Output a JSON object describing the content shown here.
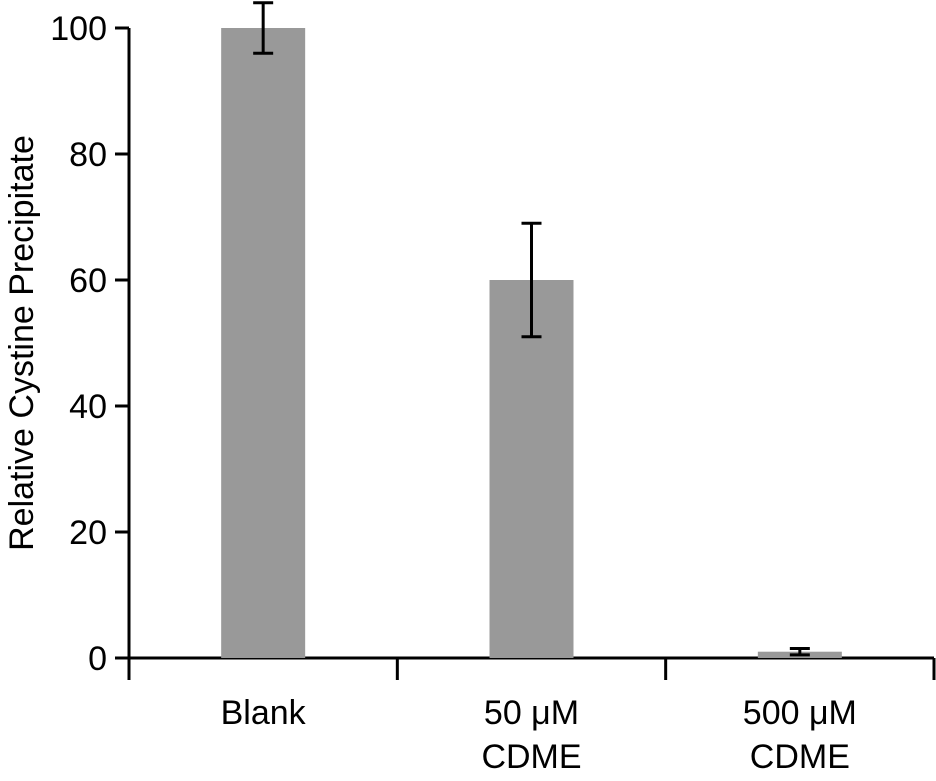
{
  "chart_data": {
    "type": "bar",
    "title": "",
    "xlabel": "",
    "ylabel": "Relative Cystine Precipitate",
    "ylim": [
      0,
      100
    ],
    "yticks": [
      0,
      20,
      40,
      60,
      80,
      100
    ],
    "grid": false,
    "legend": "none",
    "categories": [
      [
        "Blank"
      ],
      [
        "50 μM",
        "CDME"
      ],
      [
        "500 μM",
        "CDME"
      ]
    ],
    "values": [
      100,
      60,
      1
    ],
    "errors": [
      4,
      9,
      0.5
    ],
    "bar_color": "#999999",
    "axis_color": "#000000"
  }
}
